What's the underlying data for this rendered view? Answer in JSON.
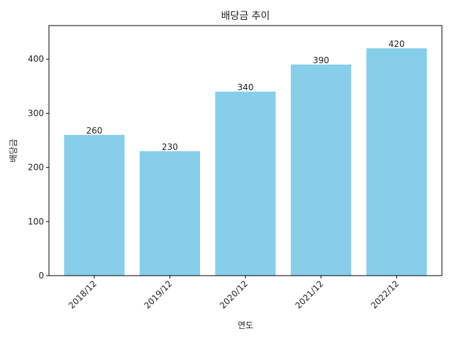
{
  "chart_data": {
    "type": "bar",
    "title": "배당금 추이",
    "xlabel": "연도",
    "ylabel": "배당금",
    "categories": [
      "2018/12",
      "2019/12",
      "2020/12",
      "2021/12",
      "2022/12"
    ],
    "values": [
      260,
      230,
      340,
      390,
      420
    ],
    "ylim": [
      0,
      462
    ],
    "yticks": [
      0,
      100,
      200,
      300,
      400
    ],
    "grid": false,
    "bar_color": "#87CEEB",
    "data_labels": true
  }
}
